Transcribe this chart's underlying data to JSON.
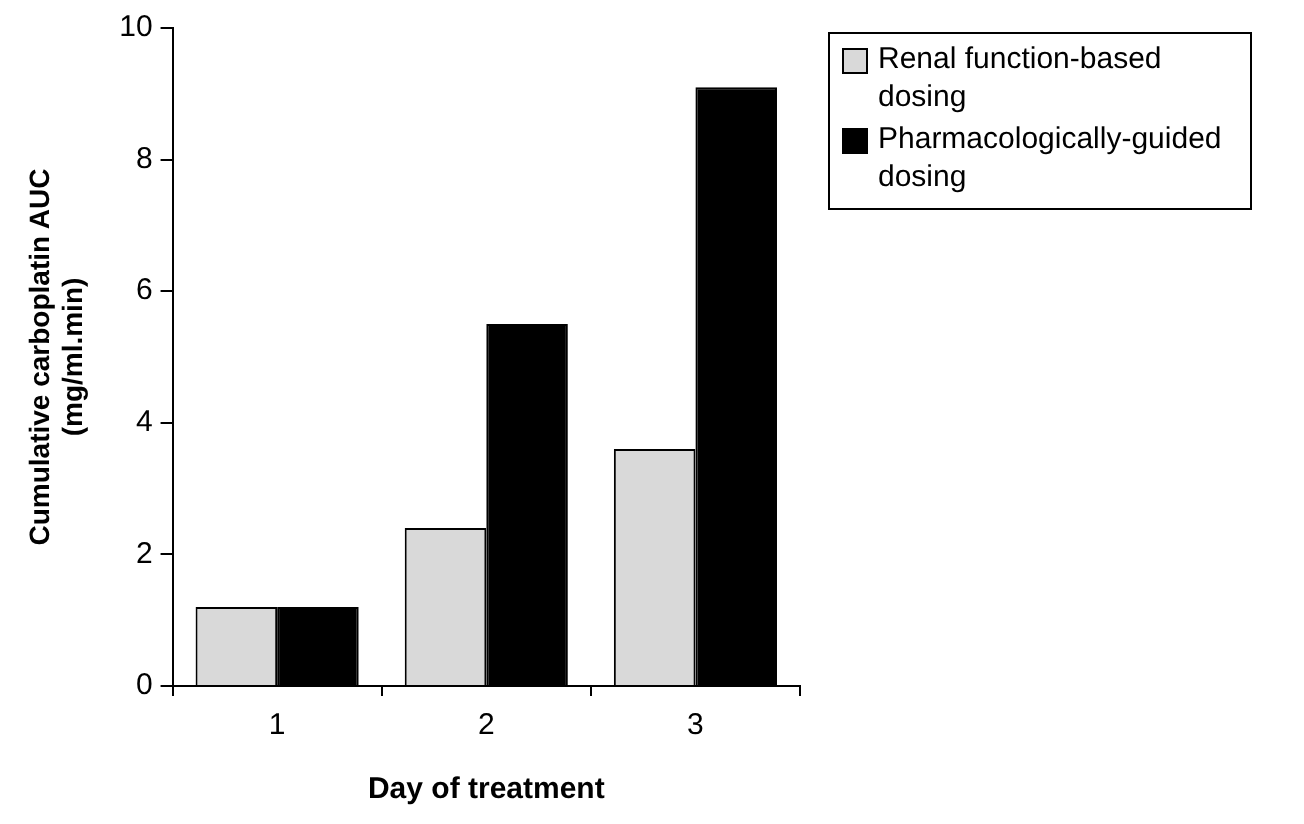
{
  "chart_data": {
    "type": "bar",
    "xlabel": "Day of treatment",
    "ylabel": "Cumulative carboplatin AUC (mg/ml.min)",
    "categories": [
      "1",
      "2",
      "3"
    ],
    "series": [
      {
        "name": "Renal function-based dosing",
        "color": "#d9d9d9",
        "values": [
          1.2,
          2.4,
          3.6
        ]
      },
      {
        "name": "Pharmacologically-guided dosing",
        "color": "#000000",
        "values": [
          1.2,
          5.5,
          9.1
        ]
      }
    ],
    "ylim": [
      0,
      10
    ],
    "yticks": [
      0,
      2,
      4,
      6,
      8,
      10
    ],
    "grid": false,
    "legend": "top right"
  }
}
